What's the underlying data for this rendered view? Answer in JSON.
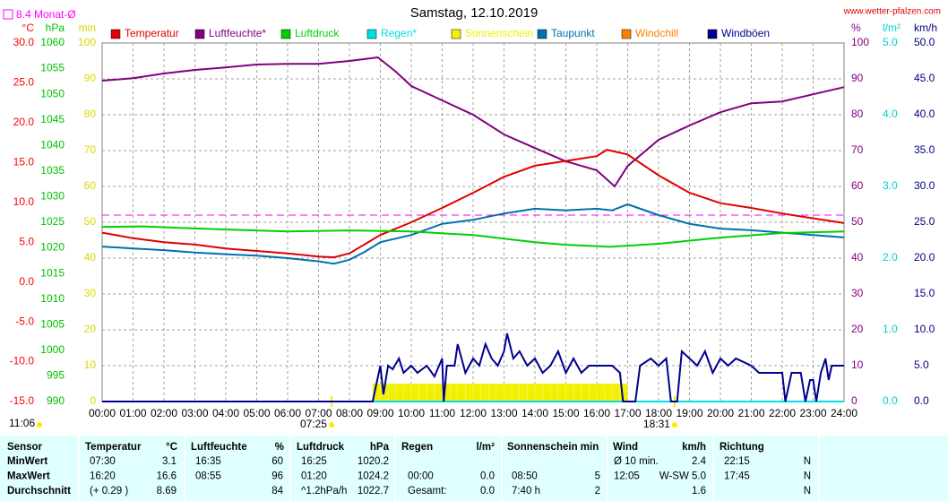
{
  "chart_data": {
    "type": "line",
    "title": "Samstag, 12.10.2019",
    "source": "www.wetter-pfalzen.com",
    "updated": "11:06",
    "monthly_mean": {
      "label": "8.4 Monat-Ø",
      "value": 8.4,
      "axis": 0,
      "color": "#ff00ff"
    },
    "sunrise": {
      "label": "07:25",
      "hour": 7.42
    },
    "sunset": {
      "label": "18:31",
      "hour": 18.52
    },
    "grid": true,
    "xlim": [
      0,
      24
    ],
    "xticks": [
      {
        "value": 0,
        "label": "00:00"
      },
      {
        "value": 1,
        "label": "01:00"
      },
      {
        "value": 2,
        "label": "02:00"
      },
      {
        "value": 3,
        "label": "03:00"
      },
      {
        "value": 4,
        "label": "04:00"
      },
      {
        "value": 5,
        "label": "05:00"
      },
      {
        "value": 6,
        "label": "06:00"
      },
      {
        "value": 7,
        "label": "07:00"
      },
      {
        "value": 8,
        "label": "08:00"
      },
      {
        "value": 9,
        "label": "09:00"
      },
      {
        "value": 10,
        "label": "10:00"
      },
      {
        "value": 11,
        "label": "11:00"
      },
      {
        "value": 12,
        "label": "12:00"
      },
      {
        "value": 13,
        "label": "13:00"
      },
      {
        "value": 14,
        "label": "14:00"
      },
      {
        "value": 15,
        "label": "15:00"
      },
      {
        "value": 16,
        "label": "16:00"
      },
      {
        "value": 17,
        "label": "17:00"
      },
      {
        "value": 18,
        "label": "18:00"
      },
      {
        "value": 19,
        "label": "19:00"
      },
      {
        "value": 20,
        "label": "20:00"
      },
      {
        "value": 21,
        "label": "21:00"
      },
      {
        "value": 22,
        "label": "22:00"
      },
      {
        "value": 23,
        "label": "23:00"
      },
      {
        "value": 24,
        "label": "24:00"
      }
    ],
    "axes": [
      {
        "unit": "°C",
        "color": "#ff0000",
        "side": "left",
        "lim": [
          -15,
          30
        ],
        "ticks": [
          {
            "value": -15,
            "label": "-15.0"
          },
          {
            "value": -10,
            "label": "-10.0"
          },
          {
            "value": -5,
            "label": "-5.0"
          },
          {
            "value": 0,
            "label": "0.0"
          },
          {
            "value": 5,
            "label": "5.0"
          },
          {
            "value": 10,
            "label": "10.0"
          },
          {
            "value": 15,
            "label": "15.0"
          },
          {
            "value": 20,
            "label": "20.0"
          },
          {
            "value": 25,
            "label": "25.0"
          },
          {
            "value": 30,
            "label": "30.0"
          }
        ]
      },
      {
        "unit": "hPa",
        "color": "#00c000",
        "side": "left",
        "lim": [
          990,
          1060
        ],
        "ticks": [
          990,
          995,
          1000,
          1005,
          1010,
          1015,
          1020,
          1025,
          1030,
          1035,
          1040,
          1045,
          1050,
          1055,
          1060
        ]
      },
      {
        "unit": "min",
        "color": "#d8d800",
        "side": "left",
        "lim": [
          0,
          100
        ],
        "ticks": [
          0,
          10,
          20,
          30,
          40,
          50,
          60,
          70,
          80,
          90,
          100
        ]
      },
      {
        "unit": "%",
        "color": "#800080",
        "side": "right",
        "lim": [
          0,
          100
        ],
        "ticks": [
          0,
          10,
          20,
          30,
          40,
          50,
          60,
          70,
          80,
          90,
          100
        ]
      },
      {
        "unit": "l/m²",
        "color": "#00d0d0",
        "side": "right",
        "lim": [
          0,
          5
        ],
        "ticks": [
          {
            "value": 0,
            "label": "0.0"
          },
          {
            "value": 1,
            "label": "1.0"
          },
          {
            "value": 2,
            "label": "2.0"
          },
          {
            "value": 3,
            "label": "3.0"
          },
          {
            "value": 4,
            "label": "4.0"
          },
          {
            "value": 5,
            "label": "5.0"
          }
        ]
      },
      {
        "unit": "km/h",
        "color": "#000080",
        "side": "right",
        "lim": [
          0,
          50
        ],
        "ticks": [
          {
            "value": 0,
            "label": "0.0"
          },
          {
            "value": 5,
            "label": "5.0"
          },
          {
            "value": 10,
            "label": "10.0"
          },
          {
            "value": 15,
            "label": "15.0"
          },
          {
            "value": 20,
            "label": "20.0"
          },
          {
            "value": 25,
            "label": "25.0"
          },
          {
            "value": 30,
            "label": "30.0"
          },
          {
            "value": 35,
            "label": "35.0"
          },
          {
            "value": 40,
            "label": "40.0"
          },
          {
            "value": 45,
            "label": "45.0"
          },
          {
            "value": 50,
            "label": "50.0"
          }
        ]
      }
    ],
    "series": [
      {
        "name": "Temperatur",
        "color": "#e00000",
        "axis": 0,
        "style": "line",
        "x": [
          0,
          1,
          2,
          3,
          4,
          5,
          6,
          7,
          7.5,
          8,
          9,
          10,
          11,
          12,
          13,
          14,
          15,
          16,
          16.33,
          17,
          18,
          19,
          20,
          21,
          22,
          23,
          24
        ],
        "values": [
          6.2,
          5.5,
          5.0,
          4.7,
          4.2,
          3.9,
          3.6,
          3.2,
          3.1,
          3.6,
          5.9,
          7.5,
          9.3,
          11.2,
          13.2,
          14.6,
          15.2,
          15.8,
          16.6,
          16.0,
          13.4,
          11.2,
          9.9,
          9.3,
          8.6,
          8.0,
          7.4
        ]
      },
      {
        "name": "Luftfeuchte*",
        "color": "#800080",
        "axis": 3,
        "style": "line",
        "x": [
          0,
          1,
          2,
          3,
          4,
          5,
          6,
          7,
          8,
          8.92,
          9.5,
          10,
          11,
          12,
          13,
          14,
          15,
          16,
          16.58,
          17,
          18,
          19,
          20,
          21,
          22,
          23,
          24
        ],
        "values": [
          89.5,
          90.2,
          91.5,
          92.5,
          93.2,
          94,
          94.2,
          94.2,
          95,
          96,
          92,
          88,
          84,
          80,
          74.5,
          70.7,
          67,
          64.5,
          60,
          65.7,
          73,
          77,
          80.7,
          83.2,
          83.7,
          85.7,
          87.7
        ]
      },
      {
        "name": "Luftdruck",
        "color": "#00d000",
        "axis": 1,
        "style": "line",
        "x": [
          0,
          1.33,
          3,
          6,
          8,
          10,
          12,
          14,
          15,
          16.42,
          18,
          20,
          22,
          24
        ],
        "values": [
          1024.1,
          1024.2,
          1023.8,
          1023.2,
          1023.4,
          1023.2,
          1022.5,
          1021.1,
          1020.6,
          1020.2,
          1020.8,
          1022,
          1022.9,
          1023.2
        ]
      },
      {
        "name": "Regen*",
        "color": "#00e0e0",
        "axis": 4,
        "style": "line",
        "x": [
          0,
          24
        ],
        "values": [
          0,
          0
        ]
      },
      {
        "name": "Sonnenschein",
        "color": "#f0f000",
        "axis": 2,
        "style": "bars",
        "x": [
          8.75,
          9,
          9.25,
          9.5,
          9.75,
          10,
          10.25,
          10.5,
          10.75,
          11,
          11.25,
          11.5,
          11.75,
          12,
          12.25,
          12.5,
          12.75,
          13,
          13.25,
          13.5,
          13.75,
          14,
          14.25,
          14.5,
          14.75,
          15,
          15.25,
          15.5,
          15.75,
          16,
          16.25,
          16.5,
          16.75
        ],
        "values": [
          5,
          5,
          5,
          5,
          5,
          5,
          5,
          5,
          5,
          5,
          5,
          5,
          5,
          5,
          5,
          5,
          5,
          5,
          5,
          5,
          5,
          5,
          5,
          5,
          5,
          5,
          5,
          5,
          5,
          5,
          5,
          5,
          5
        ]
      },
      {
        "name": "Taupunkt",
        "color": "#0070b0",
        "axis": 0,
        "style": "line",
        "x": [
          0,
          1,
          2,
          3,
          4,
          5,
          6,
          7,
          7.5,
          8,
          8.5,
          9,
          10,
          11,
          12,
          13,
          14,
          15,
          16,
          16.5,
          17,
          18,
          19,
          20,
          21,
          22,
          23,
          24
        ],
        "values": [
          4.45,
          4.2,
          4.0,
          3.7,
          3.5,
          3.3,
          3.0,
          2.6,
          2.3,
          2.8,
          3.8,
          5.0,
          5.9,
          7.3,
          7.8,
          8.6,
          9.2,
          9.0,
          9.2,
          9.0,
          9.75,
          8.4,
          7.3,
          6.7,
          6.5,
          6.2,
          5.9,
          5.6
        ]
      },
      {
        "name": "Windchill",
        "color": "#ff8000",
        "axis": 0,
        "style": "line",
        "x": [],
        "values": []
      },
      {
        "name": "Windböen",
        "color": "#000090",
        "axis": 5,
        "style": "line",
        "x": [
          0,
          8.75,
          8.85,
          9.0,
          9.1,
          9.25,
          9.4,
          9.6,
          9.75,
          10,
          10.2,
          10.5,
          10.75,
          11,
          11.05,
          11.15,
          11.4,
          11.5,
          11.75,
          12,
          12.2,
          12.4,
          12.6,
          12.8,
          13,
          13.1,
          13.3,
          13.5,
          13.75,
          14,
          14.25,
          14.5,
          14.75,
          15,
          15.25,
          15.5,
          15.75,
          16,
          16.25,
          16.5,
          16.75,
          16.85,
          17.25,
          17.4,
          17.75,
          18,
          18.25,
          18.4,
          18.6,
          18.75,
          19,
          19.25,
          19.5,
          19.75,
          20,
          20.25,
          20.5,
          21,
          21.25,
          21.5,
          22,
          22.1,
          22.3,
          22.6,
          22.75,
          22.9,
          23,
          23.1,
          23.25,
          23.4,
          23.5,
          23.6,
          23.75,
          24
        ],
        "values": [
          0,
          0,
          2,
          5,
          1,
          5,
          4.5,
          6,
          4,
          5,
          4,
          5,
          3.5,
          6,
          0,
          5,
          5,
          8,
          4,
          6,
          5,
          8,
          6,
          5,
          7,
          9.5,
          6,
          7,
          5,
          6,
          4,
          5,
          7,
          4,
          6,
          4,
          5,
          5,
          5,
          5,
          4,
          0,
          0,
          5,
          6,
          5,
          6,
          0,
          0,
          7,
          6,
          5,
          7,
          4,
          6,
          5,
          6,
          5,
          4,
          4,
          4,
          0,
          4,
          4,
          0,
          3,
          3,
          0,
          4,
          6,
          3,
          5,
          5,
          5
        ]
      }
    ]
  },
  "table": {
    "headers": [
      "Sensor",
      "Temperatur",
      "°C",
      "Luftfeuchte",
      "%",
      "Luftdruck",
      "hPa",
      "Regen",
      "l/m²",
      "Sonnenschein min",
      "Wind",
      "km/h",
      "Richtung"
    ],
    "rows": [
      [
        "MinWert",
        "07:30",
        "3.1",
        "16:35",
        "60",
        "16:25",
        "1020.2",
        null,
        null,
        null,
        null,
        "Ø 10 min.",
        "2.4",
        "22:15",
        "N"
      ],
      [
        "MaxWert",
        "16:20",
        "16.6",
        "08:55",
        "96",
        "01:20",
        "1024.2",
        "00:00",
        "0.0",
        "08:50",
        "5",
        "12:05",
        "W-SW 5.0",
        "17:45",
        "N"
      ],
      [
        "Durchschnitt",
        "(+ 0.29 )",
        "8.69",
        null,
        "84",
        "^1.2hPa/h",
        "1022.7",
        "Gesamt:",
        "0.0",
        "7:40 h",
        "2",
        null,
        "1.6",
        null,
        "N"
      ]
    ]
  }
}
